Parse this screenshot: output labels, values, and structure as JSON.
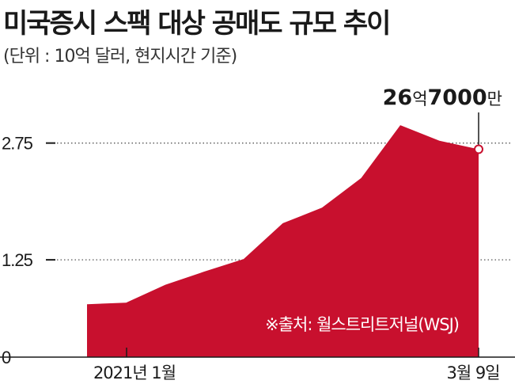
{
  "title": "미국증시 스팩 대상 공매도 규모 추이",
  "subtitle": "(단위 : 10억 달러, 현지시간 기준)",
  "colors": {
    "area": "#c8102e",
    "axis": "#1a1a1a",
    "grid": "#555555"
  },
  "chart_data": {
    "type": "area",
    "x_labels": [
      "2021년 1월",
      "3월 9일"
    ],
    "y_ticks": [
      "2.75",
      "1.25",
      "0"
    ],
    "y_tick_values": [
      2.75,
      1.25,
      0
    ],
    "ylim": [
      0,
      3.2
    ],
    "values": [
      0.68,
      0.7,
      0.93,
      1.1,
      1.26,
      1.72,
      1.92,
      2.3,
      2.98,
      2.78,
      2.67
    ],
    "callout": {
      "num1": "26",
      "unit1": "억",
      "num2": "7000",
      "unit2": "만"
    },
    "source": "※출처: 월스트리트저널(WSJ)"
  }
}
